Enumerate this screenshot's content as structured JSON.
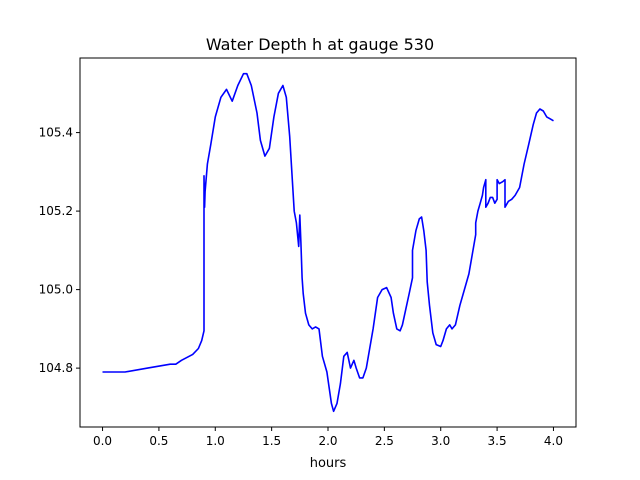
{
  "chart_data": {
    "type": "line",
    "title": "Water Depth h at gauge 530",
    "xlabel": "hours",
    "ylabel": "",
    "xlim": [
      -0.2,
      4.2
    ],
    "ylim": [
      104.65,
      105.59
    ],
    "x_ticks": [
      0.0,
      0.5,
      1.0,
      1.5,
      2.0,
      2.5,
      3.0,
      3.5,
      4.0
    ],
    "x_tick_labels": [
      "0.0",
      "0.5",
      "1.0",
      "1.5",
      "2.0",
      "2.5",
      "3.0",
      "3.5",
      "4.0"
    ],
    "y_ticks": [
      104.8,
      105.0,
      105.2,
      105.4
    ],
    "y_tick_labels": [
      "104.8",
      "105.0",
      "105.2",
      "105.4"
    ],
    "grid": false,
    "series": [
      {
        "color": "#0000ff",
        "x": [
          0.0,
          0.2,
          0.4,
          0.6,
          0.65,
          0.7,
          0.8,
          0.85,
          0.88,
          0.9,
          0.9,
          0.905,
          0.91,
          0.93,
          0.96,
          1.0,
          1.05,
          1.1,
          1.15,
          1.2,
          1.25,
          1.28,
          1.32,
          1.37,
          1.4,
          1.44,
          1.48,
          1.52,
          1.56,
          1.6,
          1.63,
          1.66,
          1.7,
          1.72,
          1.74,
          1.75,
          1.76,
          1.77,
          1.78,
          1.8,
          1.83,
          1.86,
          1.89,
          1.92,
          1.95,
          1.99,
          2.03,
          2.05,
          2.08,
          2.11,
          2.14,
          2.17,
          2.2,
          2.23,
          2.25,
          2.28,
          2.31,
          2.34,
          2.37,
          2.4,
          2.44,
          2.48,
          2.52,
          2.56,
          2.58,
          2.61,
          2.64,
          2.66,
          2.69,
          2.72,
          2.75,
          2.75,
          2.78,
          2.81,
          2.83,
          2.85,
          2.87,
          2.88,
          2.9,
          2.93,
          2.96,
          3.0,
          3.02,
          3.05,
          3.08,
          3.1,
          3.13,
          3.17,
          3.21,
          3.25,
          3.28,
          3.31,
          3.31,
          3.33,
          3.35,
          3.37,
          3.38,
          3.4,
          3.4,
          3.42,
          3.44,
          3.46,
          3.48,
          3.5,
          3.5,
          3.52,
          3.55,
          3.57,
          3.57,
          3.6,
          3.63,
          3.66,
          3.7,
          3.74,
          3.78,
          3.82,
          3.85,
          3.88,
          3.91,
          3.94,
          3.97,
          4.0
        ],
        "y": [
          104.79,
          104.79,
          104.8,
          104.81,
          104.81,
          104.82,
          104.835,
          104.85,
          104.87,
          104.895,
          105.29,
          105.21,
          105.25,
          105.32,
          105.37,
          105.44,
          105.49,
          105.51,
          105.48,
          105.52,
          105.55,
          105.55,
          105.52,
          105.45,
          105.38,
          105.34,
          105.36,
          105.44,
          105.5,
          105.52,
          105.49,
          105.39,
          105.2,
          105.17,
          105.11,
          105.19,
          105.12,
          105.03,
          104.99,
          104.94,
          104.91,
          104.9,
          104.905,
          104.9,
          104.83,
          104.79,
          104.71,
          104.69,
          104.71,
          104.76,
          104.83,
          104.84,
          104.8,
          104.82,
          104.8,
          104.775,
          104.775,
          104.8,
          104.85,
          104.9,
          104.98,
          105.0,
          105.005,
          104.98,
          104.94,
          104.9,
          104.895,
          104.91,
          104.95,
          104.99,
          105.03,
          105.1,
          105.15,
          105.18,
          105.185,
          105.15,
          105.1,
          105.02,
          104.96,
          104.89,
          104.86,
          104.855,
          104.87,
          104.9,
          104.91,
          104.9,
          104.91,
          104.96,
          105.0,
          105.04,
          105.09,
          105.14,
          105.17,
          105.2,
          105.22,
          105.24,
          105.26,
          105.28,
          105.21,
          105.22,
          105.235,
          105.235,
          105.22,
          105.23,
          105.28,
          105.27,
          105.275,
          105.28,
          105.21,
          105.225,
          105.23,
          105.24,
          105.26,
          105.32,
          105.37,
          105.42,
          105.45,
          105.46,
          105.455,
          105.44,
          105.435,
          105.43
        ]
      }
    ]
  }
}
